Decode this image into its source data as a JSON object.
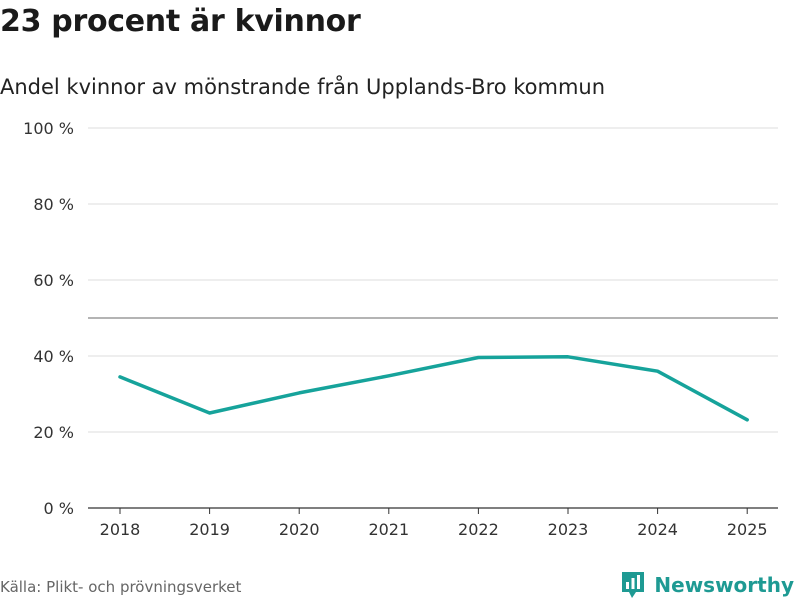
{
  "header": {
    "title": "23 procent är kvinnor",
    "subtitle": "Andel kvinnor av mönstrande från Upplands-Bro kommun"
  },
  "footer": {
    "source": "Källa: Plikt- och prövningsverket",
    "brand": "Newsworthy"
  },
  "colors": {
    "line": "#16a39b",
    "grid": "#dcdcdc",
    "reference": "#888888",
    "axis": "#333333",
    "brand": "#1e9a93"
  },
  "chart_data": {
    "type": "line",
    "title": "23 procent är kvinnor",
    "subtitle": "Andel kvinnor av mönstrande från Upplands-Bro kommun",
    "xlabel": "",
    "ylabel": "",
    "categories": [
      "2018",
      "2019",
      "2020",
      "2021",
      "2022",
      "2023",
      "2024",
      "2025"
    ],
    "series": [
      {
        "name": "Andel kvinnor",
        "values": [
          34.5,
          25,
          30.3,
          34.8,
          39.6,
          39.8,
          36,
          23.2
        ]
      }
    ],
    "ylim": [
      0,
      100
    ],
    "yticks": [
      0,
      20,
      40,
      60,
      80,
      100
    ],
    "ytick_labels": [
      "0 %",
      "20 %",
      "40 %",
      "60 %",
      "80 %",
      "100 %"
    ],
    "reference_line": 50,
    "grid": true
  }
}
